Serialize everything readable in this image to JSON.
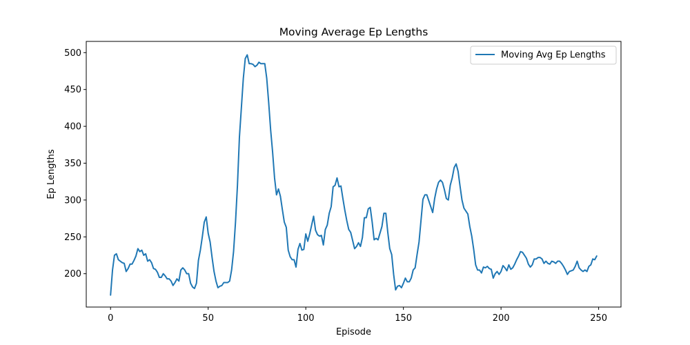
{
  "chart_data": {
    "type": "line",
    "title": "Moving Average Ep Lengths",
    "xlabel": "Episode",
    "ylabel": "Ep Lengths",
    "xlim": [
      -12.45,
      261.45
    ],
    "ylim": [
      154.75,
      515.25
    ],
    "xticks": [
      0,
      50,
      100,
      150,
      200,
      250
    ],
    "yticks": [
      200,
      250,
      300,
      350,
      400,
      450,
      500
    ],
    "grid": false,
    "legend_position": "upper right",
    "color": "#1f77b4",
    "series": [
      {
        "name": "Moving Avg Ep Lengths",
        "x_start": 0,
        "x_step": 1,
        "values": [
          171,
          205,
          225,
          227,
          219,
          217,
          215,
          214,
          203,
          207,
          213,
          213,
          218,
          224,
          234,
          230,
          232,
          225,
          227,
          217,
          219,
          215,
          207,
          206,
          202,
          195,
          195,
          200,
          197,
          193,
          193,
          190,
          184,
          188,
          193,
          190,
          205,
          208,
          205,
          200,
          200,
          187,
          182,
          180,
          187,
          218,
          232,
          250,
          270,
          277,
          255,
          243,
          222,
          203,
          190,
          181,
          183,
          184,
          188,
          188,
          188,
          190,
          205,
          230,
          270,
          320,
          385,
          425,
          465,
          492,
          497,
          485,
          485,
          484,
          481,
          483,
          487,
          485,
          485,
          485,
          465,
          432,
          395,
          365,
          330,
          307,
          315,
          305,
          287,
          270,
          263,
          232,
          223,
          219,
          219,
          209,
          233,
          241,
          232,
          233,
          254,
          244,
          254,
          266,
          278,
          259,
          253,
          251,
          252,
          239,
          260,
          266,
          282,
          291,
          318,
          320,
          330,
          318,
          319,
          302,
          286,
          272,
          260,
          256,
          245,
          234,
          237,
          242,
          237,
          249,
          276,
          276,
          288,
          290,
          270,
          246,
          248,
          246,
          255,
          264,
          282,
          282,
          256,
          234,
          226,
          199,
          178,
          183,
          184,
          181,
          187,
          194,
          189,
          189,
          194,
          205,
          208,
          226,
          243,
          272,
          301,
          307,
          307,
          299,
          291,
          283,
          302,
          315,
          324,
          327,
          324,
          314,
          302,
          300,
          320,
          330,
          344,
          349,
          339,
          319,
          300,
          289,
          285,
          281,
          264,
          251,
          233,
          212,
          205,
          205,
          201,
          209,
          208,
          210,
          207,
          206,
          194,
          200,
          203,
          199,
          203,
          211,
          208,
          204,
          212,
          206,
          208,
          213,
          219,
          224,
          230,
          229,
          225,
          221,
          213,
          209,
          212,
          220,
          220,
          222,
          222,
          220,
          214,
          217,
          214,
          213,
          217,
          216,
          214,
          217,
          217,
          214,
          210,
          205,
          199,
          203,
          204,
          205,
          210,
          217,
          208,
          205,
          203,
          205,
          203,
          210,
          212,
          220,
          219,
          224
        ]
      }
    ]
  }
}
